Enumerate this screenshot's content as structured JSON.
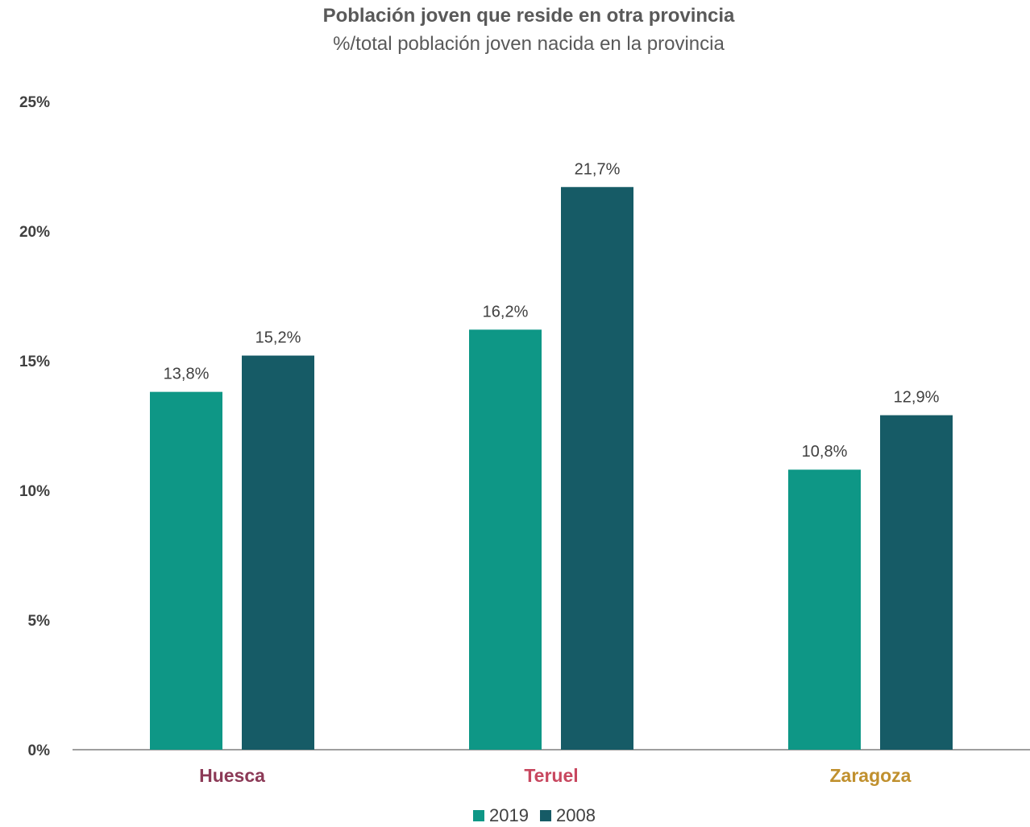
{
  "chart_data": {
    "type": "bar",
    "title": "Población joven que reside en otra provincia",
    "subtitle": "%/total población joven nacida en la provincia",
    "categories": [
      "Huesca",
      "Teruel",
      "Zaragoza"
    ],
    "category_colors": [
      "#8c3a57",
      "#c8475f",
      "#c0902e"
    ],
    "series": [
      {
        "name": "2019",
        "color": "#0e9786",
        "values": [
          13.8,
          16.2,
          10.8
        ],
        "labels": [
          "13,8%",
          "16,2%",
          "10,8%"
        ]
      },
      {
        "name": "2008",
        "color": "#165b66",
        "values": [
          15.2,
          21.7,
          12.9
        ],
        "labels": [
          "15,2%",
          "21,7%",
          "12,9%"
        ]
      }
    ],
    "y_ticks": [
      {
        "value": 0,
        "label": "0%"
      },
      {
        "value": 5,
        "label": "5%"
      },
      {
        "value": 10,
        "label": "10%"
      },
      {
        "value": 15,
        "label": "15%"
      },
      {
        "value": 20,
        "label": "20%"
      },
      {
        "value": 25,
        "label": "25%"
      }
    ],
    "ylim": [
      0,
      25
    ],
    "grid": false,
    "legend_position": "bottom-center"
  }
}
